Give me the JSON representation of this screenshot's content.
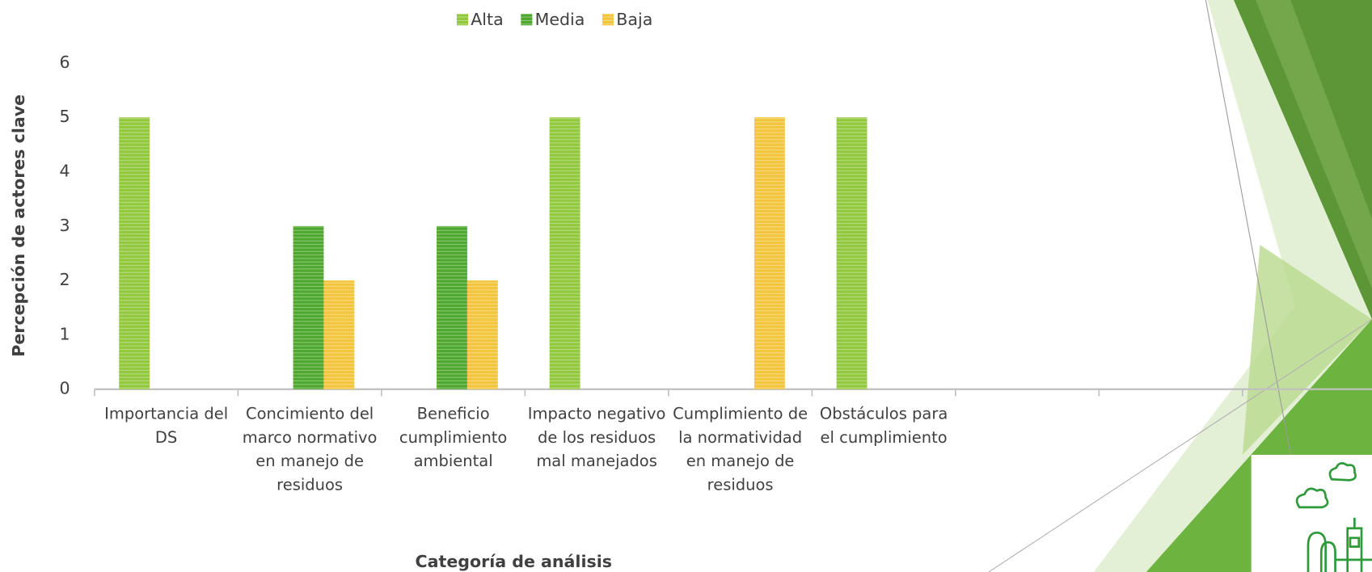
{
  "chart_data": {
    "type": "bar",
    "y_label": "Percepción de actores clave",
    "x_label": "Categoría de análisis",
    "categories": [
      "Importancia del DS",
      "Concimiento del marco normativo en manejo de residuos",
      "Beneficio cumplimiento ambiental",
      "Impacto negativo de los residuos mal manejados",
      "Cumplimiento de la normatividad en manejo de residuos",
      "Obstáculos para el cumplimiento",
      null,
      null,
      null
    ],
    "series": [
      {
        "name": "Alta",
        "color": "#92c83e",
        "values": [
          5,
          null,
          null,
          5,
          null,
          5,
          null,
          null,
          null
        ]
      },
      {
        "name": "Media",
        "color": "#4ea72e",
        "values": [
          null,
          3,
          3,
          null,
          null,
          null,
          null,
          null,
          null
        ]
      },
      {
        "name": "Baja",
        "color": "#f2c53d",
        "values": [
          null,
          2,
          2,
          null,
          5,
          null,
          null,
          null,
          null
        ]
      }
    ],
    "ylim": [
      0,
      6
    ],
    "yticks": [
      0,
      1,
      2,
      3,
      4,
      5,
      6
    ],
    "legend": "top"
  }
}
